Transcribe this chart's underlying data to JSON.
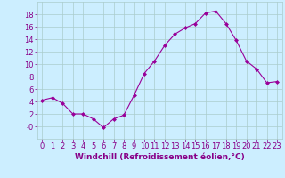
{
  "x": [
    0,
    1,
    2,
    3,
    4,
    5,
    6,
    7,
    8,
    9,
    10,
    11,
    12,
    13,
    14,
    15,
    16,
    17,
    18,
    19,
    20,
    21,
    22,
    23
  ],
  "y": [
    4.2,
    4.6,
    3.7,
    2.0,
    2.0,
    1.2,
    -0.2,
    1.2,
    1.8,
    5.0,
    8.5,
    10.5,
    13.0,
    14.8,
    15.8,
    16.5,
    18.2,
    18.5,
    16.5,
    13.8,
    10.5,
    9.2,
    7.0,
    7.2
  ],
  "line_color": "#990099",
  "marker": "D",
  "marker_size": 2,
  "background_color": "#cceeff",
  "grid_color": "#aacccc",
  "xlabel": "Windchill (Refroidissement éolien,°C)",
  "xlim": [
    -0.5,
    23.5
  ],
  "ylim": [
    -2,
    20
  ],
  "yticks": [
    0,
    2,
    4,
    6,
    8,
    10,
    12,
    14,
    16,
    18
  ],
  "ytick_labels": [
    "-0",
    "2",
    "4",
    "6",
    "8",
    "10",
    "12",
    "14",
    "16",
    "18"
  ],
  "xticks": [
    0,
    1,
    2,
    3,
    4,
    5,
    6,
    7,
    8,
    9,
    10,
    11,
    12,
    13,
    14,
    15,
    16,
    17,
    18,
    19,
    20,
    21,
    22,
    23
  ],
  "tick_color": "#880088",
  "label_color": "#880088",
  "label_fontsize": 6.5,
  "tick_fontsize": 6.0
}
